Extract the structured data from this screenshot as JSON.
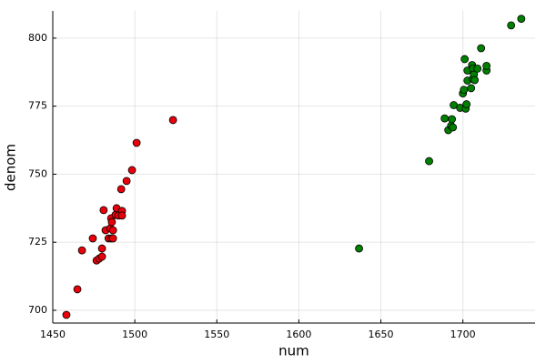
{
  "chart_data": {
    "type": "scatter",
    "xlabel": "num",
    "ylabel": "denom",
    "xlim": [
      1450,
      1744
    ],
    "ylim": [
      695.3,
      810
    ],
    "xticks": [
      1450,
      1500,
      1550,
      1600,
      1650,
      1700
    ],
    "yticks": [
      700,
      725,
      750,
      775,
      800
    ],
    "grid": true,
    "series": [
      {
        "color": "#e8000b",
        "x": [
          1458.3,
          1465,
          1467.8,
          1474.4,
          1476.7,
          1478.3,
          1480,
          1480,
          1481,
          1482.2,
          1484,
          1485,
          1485.6,
          1486.7,
          1485.6,
          1486,
          1486.7,
          1488.3,
          1488.9,
          1490,
          1492.2,
          1492.2,
          1491.7,
          1495,
          1498.3,
          1501.1,
          1523.3
        ],
        "values": [
          698.3,
          707.7,
          722,
          726.4,
          718.3,
          719,
          719.7,
          722.7,
          736.8,
          729.4,
          726.4,
          730.1,
          726.4,
          726.4,
          733.8,
          732.4,
          729.4,
          735.1,
          737.5,
          734.8,
          736.5,
          734.8,
          744.5,
          747.5,
          751.5,
          761.5,
          769.9
        ]
      },
      {
        "color": "#008000",
        "x": [
          1636.7,
          1679.4,
          1688.9,
          1691.1,
          1692.8,
          1693.3,
          1693.9,
          1694.4,
          1698.3,
          1700,
          1700.6,
          1701.1,
          1701.7,
          1702.2,
          1702.8,
          1702.8,
          1705,
          1705.6,
          1706.1,
          1706.1,
          1706.7,
          1707.2,
          1708.9,
          1711.1,
          1714.4,
          1714.4,
          1729.4,
          1735.6
        ],
        "values": [
          722.7,
          754.8,
          770.5,
          766.2,
          767.8,
          770.2,
          767.2,
          775.4,
          774.4,
          779.7,
          781,
          792.3,
          774.1,
          775.7,
          784.4,
          788.1,
          781.6,
          790.1,
          785,
          788.8,
          786.6,
          784.6,
          788.8,
          796.3,
          788.1,
          789.8,
          804.7,
          807.1
        ]
      }
    ]
  }
}
